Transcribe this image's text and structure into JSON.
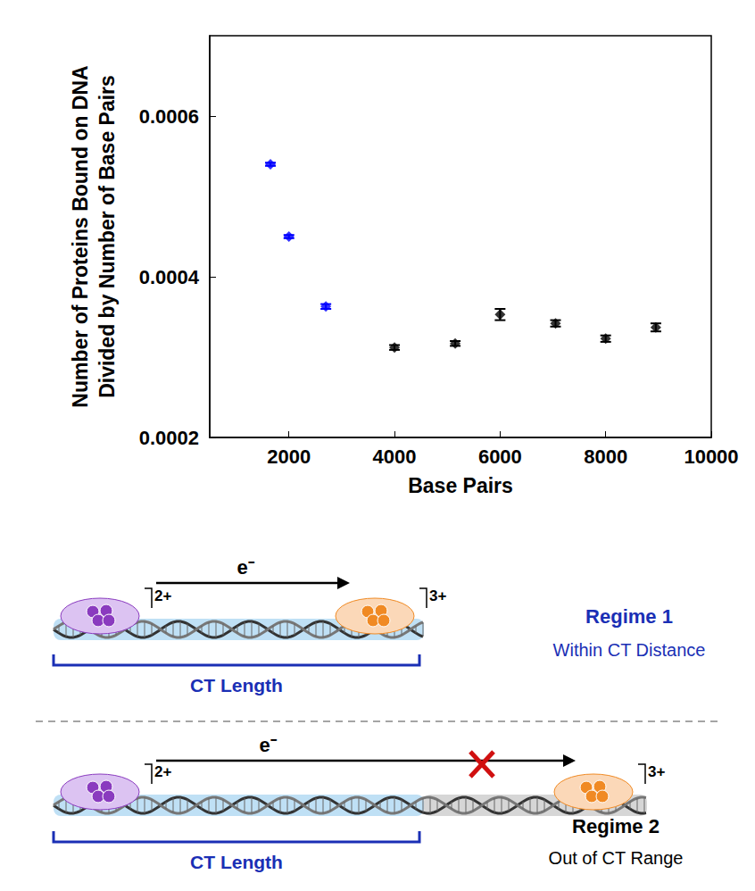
{
  "chart_data": {
    "type": "scatter",
    "x_label": "Base Pairs",
    "y_label": "Number of Proteins Bound on DNA Divided by Number of Base Pairs",
    "x": [
      1650,
      2000,
      2700,
      4000,
      5150,
      6000,
      7050,
      8000,
      8950
    ],
    "values": [
      0.00054,
      0.00045,
      0.000363,
      0.000312,
      0.000317,
      0.000353,
      0.000342,
      0.000323,
      0.000337
    ],
    "errors": [
      2e-06,
      2e-06,
      3e-06,
      3e-06,
      3e-06,
      7e-06,
      4e-06,
      4e-06,
      5e-06
    ],
    "colors": [
      "#0000ff",
      "#0000ff",
      "#0000ff",
      "#000000",
      "#000000",
      "#000000",
      "#000000",
      "#000000",
      "#000000"
    ],
    "marker": "diamond",
    "xlim": [
      500,
      10000
    ],
    "xticks": [
      2000,
      4000,
      6000,
      8000,
      10000
    ],
    "ylim": [
      0.0002,
      0.0007
    ],
    "yticks": [
      0.0002,
      0.0004,
      0.0006
    ],
    "grid": false
  },
  "diagram": {
    "regimes": [
      {
        "title": "Regime 1",
        "description": "Within CT Distance",
        "bracket": "CT Length",
        "electron": "e⁻",
        "donor_charge": "2+",
        "acceptor_charge": "3+"
      },
      {
        "title": "Regime 2",
        "description": "Out of CT Range",
        "bracket": "CT Length",
        "electron": "e⁻",
        "donor_charge": "2+",
        "acceptor_charge": "3+"
      }
    ]
  }
}
